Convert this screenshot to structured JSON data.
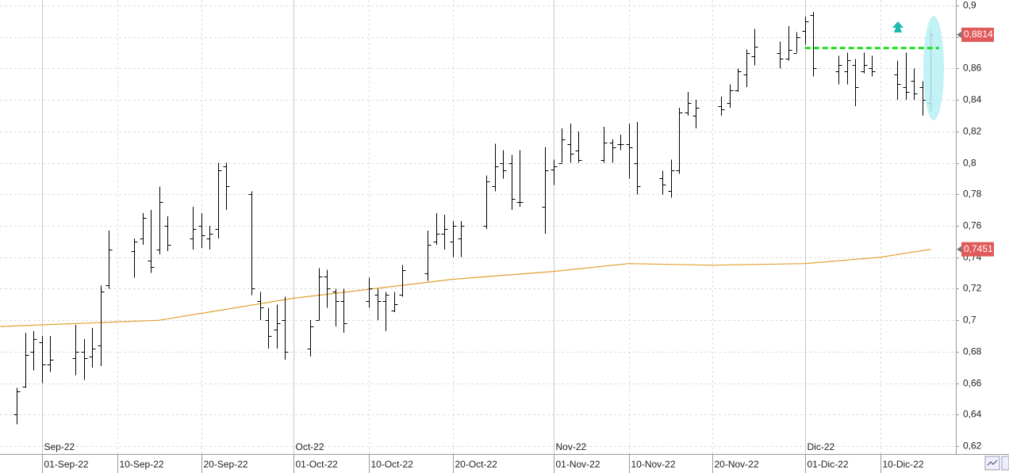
{
  "chart_data": {
    "type": "ohlc",
    "color": "#000000",
    "x": [
      "2022-08-29",
      "2022-08-30",
      "2022-08-31",
      "2022-09-01",
      "2022-09-02",
      "2022-09-05",
      "2022-09-06",
      "2022-09-07",
      "2022-09-08",
      "2022-09-09",
      "2022-09-12",
      "2022-09-13",
      "2022-09-14",
      "2022-09-15",
      "2022-09-16",
      "2022-09-19",
      "2022-09-20",
      "2022-09-21",
      "2022-09-22",
      "2022-09-23",
      "2022-09-26",
      "2022-09-27",
      "2022-09-28",
      "2022-09-29",
      "2022-09-30",
      "2022-10-03",
      "2022-10-04",
      "2022-10-05",
      "2022-10-06",
      "2022-10-07",
      "2022-10-10",
      "2022-10-11",
      "2022-10-12",
      "2022-10-13",
      "2022-10-14",
      "2022-10-17",
      "2022-10-18",
      "2022-10-19",
      "2022-10-20",
      "2022-10-21",
      "2022-10-24",
      "2022-10-25",
      "2022-10-26",
      "2022-10-27",
      "2022-10-28",
      "2022-10-31",
      "2022-11-01",
      "2022-11-02",
      "2022-11-03",
      "2022-11-04",
      "2022-11-07",
      "2022-11-08",
      "2022-11-09",
      "2022-11-10",
      "2022-11-11",
      "2022-11-14",
      "2022-11-15",
      "2022-11-16",
      "2022-11-17",
      "2022-11-18",
      "2022-11-21",
      "2022-11-22",
      "2022-11-23",
      "2022-11-24",
      "2022-11-25",
      "2022-11-28",
      "2022-11-29",
      "2022-11-30",
      "2022-12-01",
      "2022-12-02",
      "2022-12-05",
      "2022-12-06",
      "2022-12-07",
      "2022-12-08",
      "2022-12-09",
      "2022-12-12",
      "2022-12-13",
      "2022-12-14",
      "2022-12-15",
      "2022-12-16"
    ],
    "ohlc": [
      [
        0.64,
        0.657,
        0.634,
        0.655
      ],
      [
        0.658,
        0.692,
        0.657,
        0.678
      ],
      [
        0.68,
        0.693,
        0.668,
        0.688
      ],
      [
        0.686,
        0.69,
        0.66,
        0.672
      ],
      [
        0.672,
        0.69,
        0.667,
        0.675
      ],
      [
        0.676,
        0.697,
        0.665,
        0.68
      ],
      [
        0.68,
        0.688,
        0.662,
        0.676
      ],
      [
        0.677,
        0.695,
        0.67,
        0.682
      ],
      [
        0.684,
        0.722,
        0.671,
        0.718
      ],
      [
        0.722,
        0.757,
        0.72,
        0.745
      ],
      [
        0.744,
        0.752,
        0.727,
        0.75
      ],
      [
        0.752,
        0.768,
        0.748,
        0.765
      ],
      [
        0.738,
        0.77,
        0.73,
        0.734
      ],
      [
        0.745,
        0.785,
        0.742,
        0.775
      ],
      [
        0.76,
        0.766,
        0.744,
        0.748
      ],
      [
        0.752,
        0.772,
        0.745,
        0.758
      ],
      [
        0.76,
        0.768,
        0.746,
        0.754
      ],
      [
        0.752,
        0.76,
        0.745,
        0.755
      ],
      [
        0.758,
        0.8,
        0.752,
        0.795
      ],
      [
        0.798,
        0.8,
        0.77,
        0.785
      ],
      [
        0.78,
        0.782,
        0.716,
        0.72
      ],
      [
        0.712,
        0.718,
        0.7,
        0.708
      ],
      [
        0.7,
        0.708,
        0.682,
        0.69
      ],
      [
        0.694,
        0.71,
        0.682,
        0.698
      ],
      [
        0.7,
        0.715,
        0.675,
        0.68
      ],
      [
        0.682,
        0.7,
        0.677,
        0.696
      ],
      [
        0.7,
        0.733,
        0.7,
        0.728
      ],
      [
        0.728,
        0.732,
        0.708,
        0.72
      ],
      [
        0.718,
        0.72,
        0.696,
        0.712
      ],
      [
        0.712,
        0.72,
        0.692,
        0.698
      ],
      [
        0.712,
        0.727,
        0.708,
        0.72
      ],
      [
        0.716,
        0.72,
        0.7,
        0.712
      ],
      [
        0.712,
        0.718,
        0.693,
        0.716
      ],
      [
        0.706,
        0.718,
        0.705,
        0.71
      ],
      [
        0.716,
        0.735,
        0.715,
        0.732
      ],
      [
        0.73,
        0.757,
        0.725,
        0.748
      ],
      [
        0.75,
        0.768,
        0.748,
        0.755
      ],
      [
        0.755,
        0.767,
        0.745,
        0.758
      ],
      [
        0.75,
        0.763,
        0.74,
        0.76
      ],
      [
        0.752,
        0.763,
        0.74,
        0.76
      ],
      [
        0.76,
        0.792,
        0.758,
        0.788
      ],
      [
        0.785,
        0.812,
        0.782,
        0.798
      ],
      [
        0.8,
        0.808,
        0.79,
        0.795
      ],
      [
        0.8,
        0.805,
        0.77,
        0.777
      ],
      [
        0.775,
        0.808,
        0.772,
        0.775
      ],
      [
        0.772,
        0.81,
        0.755,
        0.795
      ],
      [
        0.796,
        0.802,
        0.786,
        0.798
      ],
      [
        0.8,
        0.822,
        0.8,
        0.815
      ],
      [
        0.812,
        0.825,
        0.8,
        0.806
      ],
      [
        0.808,
        0.82,
        0.8,
        0.802
      ],
      [
        0.802,
        0.823,
        0.8,
        0.813
      ],
      [
        0.813,
        0.815,
        0.8,
        0.81
      ],
      [
        0.812,
        0.818,
        0.808,
        0.812
      ],
      [
        0.812,
        0.825,
        0.79,
        0.81
      ],
      [
        0.8,
        0.826,
        0.78,
        0.785
      ],
      [
        0.79,
        0.795,
        0.78,
        0.786
      ],
      [
        0.782,
        0.802,
        0.778,
        0.795
      ],
      [
        0.795,
        0.835,
        0.793,
        0.832
      ],
      [
        0.832,
        0.845,
        0.83,
        0.838
      ],
      [
        0.83,
        0.84,
        0.822,
        0.835
      ],
      [
        0.836,
        0.842,
        0.83,
        0.834
      ],
      [
        0.838,
        0.85,
        0.835,
        0.846
      ],
      [
        0.846,
        0.86,
        0.845,
        0.858
      ],
      [
        0.856,
        0.872,
        0.848,
        0.87
      ],
      [
        0.868,
        0.885,
        0.862,
        0.874
      ],
      [
        0.87,
        0.877,
        0.86,
        0.866
      ],
      [
        0.866,
        0.887,
        0.865,
        0.872
      ],
      [
        0.87,
        0.883,
        0.87,
        0.88
      ],
      [
        0.884,
        0.893,
        0.875,
        0.89
      ],
      [
        0.894,
        0.896,
        0.855,
        0.86
      ],
      [
        0.858,
        0.868,
        0.85,
        0.862
      ],
      [
        0.858,
        0.87,
        0.85,
        0.865
      ],
      [
        0.862,
        0.866,
        0.836,
        0.848
      ],
      [
        0.858,
        0.87,
        0.857,
        0.862
      ],
      [
        0.86,
        0.868,
        0.855,
        0.858
      ],
      [
        0.856,
        0.865,
        0.84,
        0.85
      ],
      [
        0.848,
        0.87,
        0.84,
        0.845
      ],
      [
        0.852,
        0.86,
        0.84,
        0.844
      ],
      [
        0.848,
        0.852,
        0.83,
        0.84
      ],
      [
        0.838,
        0.884,
        0.833,
        0.8814
      ]
    ],
    "last_price": {
      "value": 0.8814,
      "label": "0,8814",
      "color": "#e05a5a"
    },
    "moving_average": {
      "color": "#e0a030",
      "x": [
        "2022-08-27",
        "2022-09-15",
        "2022-10-01",
        "2022-10-20",
        "2022-11-01",
        "2022-11-10",
        "2022-11-20",
        "2022-12-01",
        "2022-12-10",
        "2022-12-16"
      ],
      "values": [
        0.696,
        0.7,
        0.714,
        0.726,
        0.731,
        0.736,
        0.735,
        0.736,
        0.74,
        0.7451
      ],
      "last_label": {
        "value": 0.7451,
        "label": "0,7451"
      }
    },
    "level_line": {
      "value": 0.873,
      "x": [
        "2022-12-01",
        "2022-12-17"
      ],
      "color": "#22dd22"
    },
    "xlim": [
      "2022-08-27",
      "2022-12-19"
    ],
    "ylim": [
      0.615,
      0.9035
    ],
    "yticks": [
      {
        "value": 0.62,
        "label": "0,62"
      },
      {
        "value": 0.64,
        "label": "0,64"
      },
      {
        "value": 0.66,
        "label": "0,66"
      },
      {
        "value": 0.68,
        "label": "0,68"
      },
      {
        "value": 0.7,
        "label": "0,7"
      },
      {
        "value": 0.72,
        "label": "0,72"
      },
      {
        "value": 0.74,
        "label": "0,74"
      },
      {
        "value": 0.76,
        "label": "0,76"
      },
      {
        "value": 0.78,
        "label": "0,78"
      },
      {
        "value": 0.8,
        "label": "0,8"
      },
      {
        "value": 0.82,
        "label": "0,82"
      },
      {
        "value": 0.84,
        "label": "0,84"
      },
      {
        "value": 0.86,
        "label": "0,86"
      },
      {
        "value": 0.88,
        "label": "0,88"
      },
      {
        "value": 0.9,
        "label": "0,9"
      }
    ],
    "xticks": [
      {
        "value": "2022-09-01",
        "label": "01-Sep-22"
      },
      {
        "value": "2022-09-10",
        "label": "10-Sep-22"
      },
      {
        "value": "2022-09-20",
        "label": "20-Sep-22"
      },
      {
        "value": "2022-10-01",
        "label": "01-Oct-22"
      },
      {
        "value": "2022-10-10",
        "label": "10-Oct-22"
      },
      {
        "value": "2022-10-20",
        "label": "20-Oct-22"
      },
      {
        "value": "2022-11-01",
        "label": "01-Nov-22"
      },
      {
        "value": "2022-11-10",
        "label": "10-Nov-22"
      },
      {
        "value": "2022-11-20",
        "label": "20-Nov-22"
      },
      {
        "value": "2022-12-01",
        "label": "01-Dic-22"
      },
      {
        "value": "2022-12-10",
        "label": "10-Dic-22"
      }
    ],
    "month_ticks": [
      {
        "value": "2022-09-01",
        "label": "Sep-22"
      },
      {
        "value": "2022-10-01",
        "label": "Oct-22"
      },
      {
        "value": "2022-11-01",
        "label": "Nov-22"
      },
      {
        "value": "2022-12-01",
        "label": "Dic-22"
      }
    ],
    "grid": true
  }
}
